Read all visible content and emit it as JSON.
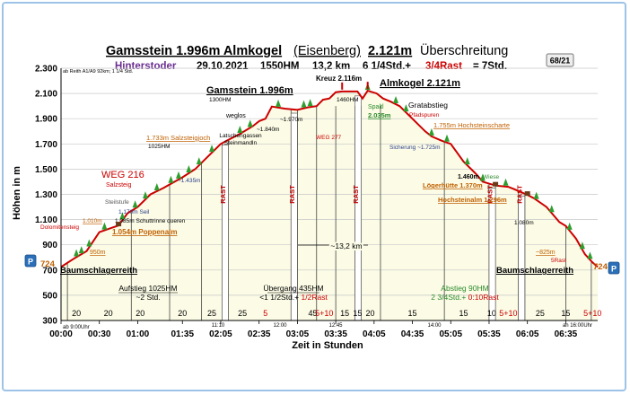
{
  "header": {
    "title_a": "Gamsstein 1.996m Almkogel",
    "title_b": "(Eisenberg)",
    "title_c": "2.121m",
    "title_d": "Überschreitung",
    "start": "Hinterstoder",
    "date": "29.10.2021",
    "hm": "1550HM",
    "dist": "13,2 km",
    "time_a": "6 1/4Std.+",
    "time_b": "3/4Rast",
    "time_c": "= 7Std.",
    "badge": "68/21",
    "note": "ab Reith  A1/A9  92km;  1 1/4 Std."
  },
  "chart_data": {
    "type": "area",
    "ylabel": "Höhen in m",
    "xlabel": "Zeit in Stunden",
    "ylim": [
      300,
      2300
    ],
    "yticks": [
      "300",
      "500",
      "700",
      "900",
      "1.100",
      "1.300",
      "1.500",
      "1.700",
      "1.900",
      "2.100",
      "2.300"
    ],
    "xlim_minutes": [
      0,
      420
    ],
    "xticks": [
      "00:00",
      "00:30",
      "01:00",
      "01:35",
      "02:05",
      "02:35",
      "03:05",
      "03:35",
      "04:05",
      "04:35",
      "05:05",
      "05:35",
      "06:05",
      "06:35"
    ],
    "profile": [
      [
        0,
        724
      ],
      [
        10,
        790
      ],
      [
        20,
        850
      ],
      [
        30,
        1000
      ],
      [
        45,
        1054
      ],
      [
        52,
        1150
      ],
      [
        60,
        1200
      ],
      [
        70,
        1300
      ],
      [
        80,
        1350
      ],
      [
        95,
        1435
      ],
      [
        105,
        1500
      ],
      [
        115,
        1600
      ],
      [
        125,
        1700
      ],
      [
        131,
        1733
      ],
      [
        140,
        1780
      ],
      [
        150,
        1840
      ],
      [
        155,
        1880
      ],
      [
        160,
        1900
      ],
      [
        165,
        1996
      ],
      [
        175,
        1980
      ],
      [
        185,
        1970
      ],
      [
        193,
        1990
      ],
      [
        200,
        2000
      ],
      [
        205,
        2050
      ],
      [
        210,
        2060
      ],
      [
        215,
        2110
      ],
      [
        220,
        2116
      ],
      [
        232,
        2116
      ],
      [
        236,
        2060
      ],
      [
        240,
        2121
      ],
      [
        247,
        2100
      ],
      [
        252,
        2060
      ],
      [
        258,
        2035
      ],
      [
        265,
        2000
      ],
      [
        275,
        1900
      ],
      [
        285,
        1800
      ],
      [
        290,
        1760
      ],
      [
        298,
        1725
      ],
      [
        305,
        1700
      ],
      [
        315,
        1560
      ],
      [
        325,
        1460
      ],
      [
        330,
        1400
      ],
      [
        340,
        1370
      ],
      [
        350,
        1360
      ],
      [
        355,
        1340
      ],
      [
        365,
        1296
      ],
      [
        370,
        1270
      ],
      [
        380,
        1200
      ],
      [
        390,
        1080
      ],
      [
        395,
        1050
      ],
      [
        403,
        950
      ],
      [
        410,
        825
      ],
      [
        416,
        760
      ],
      [
        420,
        724
      ]
    ],
    "rest_blocks": [
      [
        126,
        131
      ],
      [
        180,
        185
      ],
      [
        230,
        235
      ],
      [
        335,
        340
      ],
      [
        358,
        363
      ]
    ],
    "segment_lines": [
      5,
      55,
      85,
      110,
      126,
      131,
      180,
      185,
      200,
      215,
      230,
      235,
      250,
      300,
      335,
      340,
      358,
      363,
      395,
      415
    ],
    "segment_minutes": [
      "20",
      "20",
      "20",
      "20",
      "25",
      "25",
      "5",
      "45",
      "5+10",
      "15",
      "15",
      "20",
      "15",
      "15",
      "10",
      "5+10",
      "25",
      "15",
      "5+10"
    ],
    "small_times": [
      "ab 9:00Uhr",
      "11:10",
      "12:00",
      "12:45",
      "14:00",
      "an 16:00Uhr"
    ],
    "labels": {
      "gamsstein": "Gamsstein 1.996m",
      "kreuz": "Kreuz 2.116m",
      "almkogel": "Almkogel 2.121m",
      "gratabstieg": "Gratabstieg",
      "pfadspuren": "Pfadspuren",
      "spaltl": "Spaltl",
      "spaltl_h": "2.035m",
      "hm1300": "1300HM",
      "hm1460": "1460HM",
      "weglos": "weglos",
      "h1840": "~1.840m",
      "h1970": "~1.970m",
      "weg277": "WEG 277",
      "latsch1": "Latschengassen",
      "latsch2": "Steinmandln",
      "salz1": "1.733m Salzsteigjoch",
      "salz2": "1025HM",
      "weg216": "WEG 216",
      "salzsteig": "Salzsteig",
      "h1435": "~1.435m",
      "steilstufe": "Steilstufe",
      "seil": "1.170m Seil",
      "schutt": "1.085m Schuttrinne queren",
      "dolo": "Dolomitensteig",
      "h1010": "1.010m",
      "h950": "950m",
      "poppen": "1.054m Poppenalm",
      "baum_l": "Baumschlagerreith",
      "baum_r": "Baumschlagerreith",
      "h724l": "724",
      "h724r": "724",
      "hochstein": "1.755m Hochsteinscharte",
      "sicherung": "Sicherung ~1.725m",
      "h1460": "1.460m",
      "wiese": "Wiese",
      "loeger": "Lögerhütte 1.370m",
      "hochsteinalm": "Hochsteinalm 1.296m",
      "h1080": "1.080m",
      "h825": "~825m",
      "srast": "5Rast",
      "dist_mid": "~13,2 km",
      "rast": "RAST",
      "parking": "P"
    },
    "sections": [
      {
        "name": "Aufstieg 1025HM",
        "sub": "~2 Std."
      },
      {
        "name": "Übergang 435HM",
        "sub_a": "<1 1/2Std.+ ",
        "sub_b": "1/2Rast"
      },
      {
        "name": "Abstieg 90HM",
        "sub_a": "2 3/4Std.+ ",
        "sub_b": "0:10Rast"
      }
    ]
  },
  "colors": {
    "fill": "#fbfbe6",
    "line": "#cc0000",
    "title": "#000000",
    "start": "#6a2c91",
    "rast": "#c00000",
    "tree": "#2e9e2e",
    "label_orange": "#c06000",
    "green": "#2b8a2b",
    "red": "#cc0000"
  }
}
